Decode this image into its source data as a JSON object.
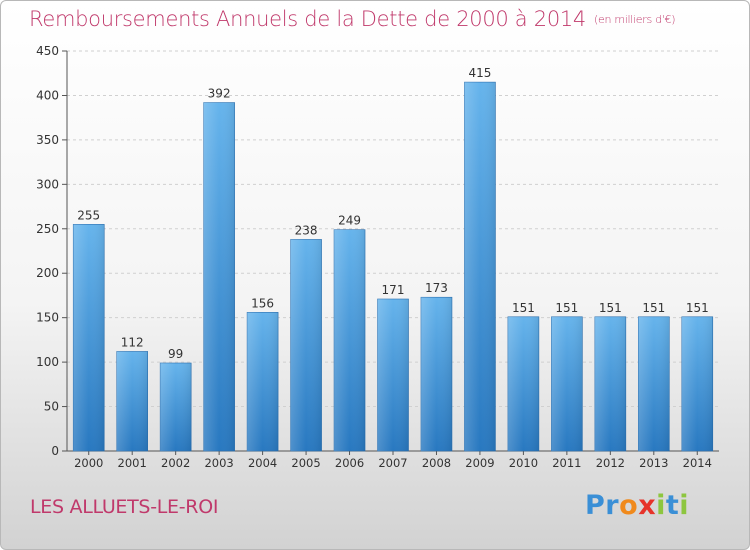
{
  "title": "Remboursements Annuels de la Dette de 2000 à 2014",
  "subtitle": "(en milliers d'€)",
  "place": "LES ALLUETS-LE-ROI",
  "logo": {
    "letters": [
      {
        "ch": "P",
        "color": "#3a8fd6"
      },
      {
        "ch": "r",
        "color": "#3a8fd6"
      },
      {
        "ch": "o",
        "color": "#f08a1c"
      },
      {
        "ch": "x",
        "color": "#e6332a"
      },
      {
        "ch": "i",
        "color": "#8dc63f"
      },
      {
        "ch": "t",
        "color": "#3a8fd6"
      },
      {
        "ch": "i",
        "color": "#8dc63f"
      }
    ]
  },
  "colors": {
    "bar_top": "#66b4ec",
    "bar_bottom": "#2878c0",
    "title": "#c0396b"
  },
  "chart_data": {
    "type": "bar",
    "categories": [
      "2000",
      "2001",
      "2002",
      "2003",
      "2004",
      "2005",
      "2006",
      "2007",
      "2008",
      "2009",
      "2010",
      "2011",
      "2012",
      "2013",
      "2014"
    ],
    "values": [
      255,
      112,
      99,
      392,
      156,
      238,
      249,
      171,
      173,
      415,
      151,
      151,
      151,
      151,
      151
    ],
    "ylim": [
      0,
      450
    ],
    "yticks": [
      0,
      50,
      100,
      150,
      200,
      250,
      300,
      350,
      400,
      450
    ],
    "grid": true,
    "legend": "none"
  }
}
